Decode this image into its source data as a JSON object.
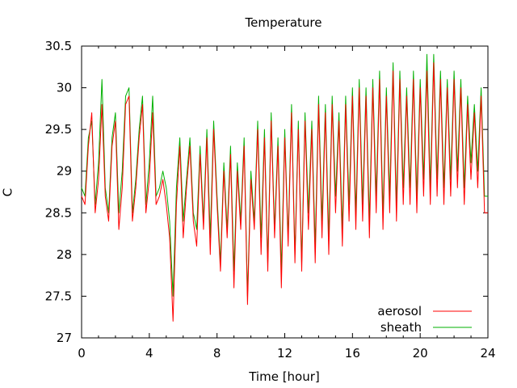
{
  "chart_data": {
    "type": "line",
    "title": "Temperature",
    "xlabel": "Time [hour]",
    "ylabel": "C",
    "xlim": [
      0,
      24
    ],
    "ylim": [
      27,
      30.5
    ],
    "x_ticks": [
      0,
      4,
      8,
      12,
      16,
      20,
      24
    ],
    "y_ticks": [
      "27",
      "27.5",
      "28",
      "28.5",
      "29",
      "29.5",
      "30",
      "30.5"
    ],
    "grid": false,
    "legend_position": "bottom-right",
    "series": [
      {
        "name": "aerosol",
        "color": "#ff0000",
        "x": [
          0.0,
          0.2,
          0.4,
          0.6,
          0.8,
          1.0,
          1.2,
          1.4,
          1.6,
          1.8,
          2.0,
          2.2,
          2.4,
          2.6,
          2.8,
          3.0,
          3.2,
          3.4,
          3.6,
          3.8,
          4.0,
          4.2,
          4.4,
          4.6,
          4.8,
          5.0,
          5.2,
          5.4,
          5.6,
          5.8,
          6.0,
          6.2,
          6.4,
          6.6,
          6.8,
          7.0,
          7.2,
          7.4,
          7.6,
          7.8,
          8.0,
          8.2,
          8.4,
          8.6,
          8.8,
          9.0,
          9.2,
          9.4,
          9.6,
          9.8,
          10.0,
          10.2,
          10.4,
          10.6,
          10.8,
          11.0,
          11.2,
          11.4,
          11.6,
          11.8,
          12.0,
          12.2,
          12.4,
          12.6,
          12.8,
          13.0,
          13.2,
          13.4,
          13.6,
          13.8,
          14.0,
          14.2,
          14.4,
          14.6,
          14.8,
          15.0,
          15.2,
          15.4,
          15.6,
          15.8,
          16.0,
          16.2,
          16.4,
          16.6,
          16.8,
          17.0,
          17.2,
          17.4,
          17.6,
          17.8,
          18.0,
          18.2,
          18.4,
          18.6,
          18.8,
          19.0,
          19.2,
          19.4,
          19.6,
          19.8,
          20.0,
          20.2,
          20.4,
          20.6,
          20.8,
          21.0,
          21.2,
          21.4,
          21.6,
          21.8,
          22.0,
          22.2,
          22.4,
          22.6,
          22.8,
          23.0,
          23.2,
          23.4,
          23.6,
          23.8,
          24.0
        ],
        "values": [
          28.7,
          28.6,
          29.3,
          29.7,
          28.5,
          28.9,
          29.8,
          28.7,
          28.4,
          29.3,
          29.6,
          28.3,
          28.8,
          29.8,
          29.9,
          28.4,
          28.8,
          29.4,
          29.8,
          28.5,
          28.9,
          29.7,
          28.6,
          28.7,
          28.9,
          28.6,
          28.2,
          27.2,
          28.6,
          29.3,
          28.2,
          28.8,
          29.3,
          28.4,
          28.1,
          29.2,
          28.3,
          29.4,
          28.0,
          29.5,
          28.6,
          27.8,
          29.0,
          28.2,
          29.2,
          27.6,
          29.0,
          28.3,
          29.3,
          27.4,
          28.9,
          28.3,
          29.5,
          28.0,
          29.4,
          27.8,
          29.6,
          28.2,
          29.3,
          27.6,
          29.4,
          28.1,
          29.7,
          27.9,
          29.5,
          27.8,
          29.6,
          28.3,
          29.5,
          27.9,
          29.8,
          28.2,
          29.7,
          28.0,
          29.8,
          28.5,
          29.6,
          28.1,
          29.8,
          28.4,
          29.9,
          28.3,
          30.0,
          28.4,
          29.9,
          28.2,
          30.0,
          28.5,
          30.1,
          28.3,
          29.9,
          28.5,
          30.2,
          28.4,
          30.1,
          28.6,
          29.9,
          28.6,
          30.1,
          28.5,
          30.0,
          28.7,
          30.2,
          28.6,
          30.3,
          28.7,
          30.1,
          28.6,
          30.0,
          28.7,
          30.1,
          28.8,
          30.0,
          28.6,
          29.8,
          28.9,
          29.7,
          28.8,
          29.9,
          28.5,
          28.5
        ]
      },
      {
        "name": "sheath",
        "color": "#00b000",
        "x": [
          0.0,
          0.2,
          0.4,
          0.6,
          0.8,
          1.0,
          1.2,
          1.4,
          1.6,
          1.8,
          2.0,
          2.2,
          2.4,
          2.6,
          2.8,
          3.0,
          3.2,
          3.4,
          3.6,
          3.8,
          4.0,
          4.2,
          4.4,
          4.6,
          4.8,
          5.0,
          5.2,
          5.4,
          5.6,
          5.8,
          6.0,
          6.2,
          6.4,
          6.6,
          6.8,
          7.0,
          7.2,
          7.4,
          7.6,
          7.8,
          8.0,
          8.2,
          8.4,
          8.6,
          8.8,
          9.0,
          9.2,
          9.4,
          9.6,
          9.8,
          10.0,
          10.2,
          10.4,
          10.6,
          10.8,
          11.0,
          11.2,
          11.4,
          11.6,
          11.8,
          12.0,
          12.2,
          12.4,
          12.6,
          12.8,
          13.0,
          13.2,
          13.4,
          13.6,
          13.8,
          14.0,
          14.2,
          14.4,
          14.6,
          14.8,
          15.0,
          15.2,
          15.4,
          15.6,
          15.8,
          16.0,
          16.2,
          16.4,
          16.6,
          16.8,
          17.0,
          17.2,
          17.4,
          17.6,
          17.8,
          18.0,
          18.2,
          18.4,
          18.6,
          18.8,
          19.0,
          19.2,
          19.4,
          19.6,
          19.8,
          20.0,
          20.2,
          20.4,
          20.6,
          20.8,
          21.0,
          21.2,
          21.4,
          21.6,
          21.8,
          22.0,
          22.2,
          22.4,
          22.6,
          22.8,
          23.0,
          23.2,
          23.4,
          23.6,
          23.8,
          24.0
        ],
        "values": [
          28.8,
          28.7,
          29.4,
          29.6,
          28.6,
          29.1,
          30.1,
          28.8,
          28.5,
          29.4,
          29.7,
          28.5,
          29.0,
          29.9,
          30.0,
          28.5,
          28.9,
          29.5,
          29.9,
          28.6,
          29.1,
          29.9,
          28.7,
          28.8,
          29.0,
          28.8,
          28.4,
          27.5,
          28.8,
          29.4,
          28.4,
          28.9,
          29.4,
          28.5,
          28.3,
          29.3,
          28.4,
          29.5,
          28.2,
          29.6,
          28.7,
          27.9,
          29.1,
          28.3,
          29.3,
          27.8,
          29.1,
          28.4,
          29.4,
          27.5,
          29.0,
          28.4,
          29.6,
          28.2,
          29.5,
          27.9,
          29.7,
          28.3,
          29.4,
          27.8,
          29.5,
          28.2,
          29.8,
          28.0,
          29.6,
          27.9,
          29.7,
          28.5,
          29.6,
          28.1,
          29.9,
          28.4,
          29.8,
          28.2,
          29.9,
          28.7,
          29.7,
          28.3,
          29.9,
          28.6,
          30.0,
          28.5,
          30.1,
          28.6,
          30.0,
          28.4,
          30.1,
          28.7,
          30.2,
          28.5,
          30.0,
          28.7,
          30.3,
          28.6,
          30.2,
          28.8,
          30.0,
          28.8,
          30.2,
          28.7,
          30.1,
          28.9,
          30.4,
          28.8,
          30.4,
          28.9,
          30.2,
          28.8,
          30.1,
          28.9,
          30.2,
          29.0,
          30.1,
          28.8,
          29.9,
          29.1,
          29.8,
          29.0,
          30.0,
          28.7,
          28.7
        ]
      }
    ]
  }
}
